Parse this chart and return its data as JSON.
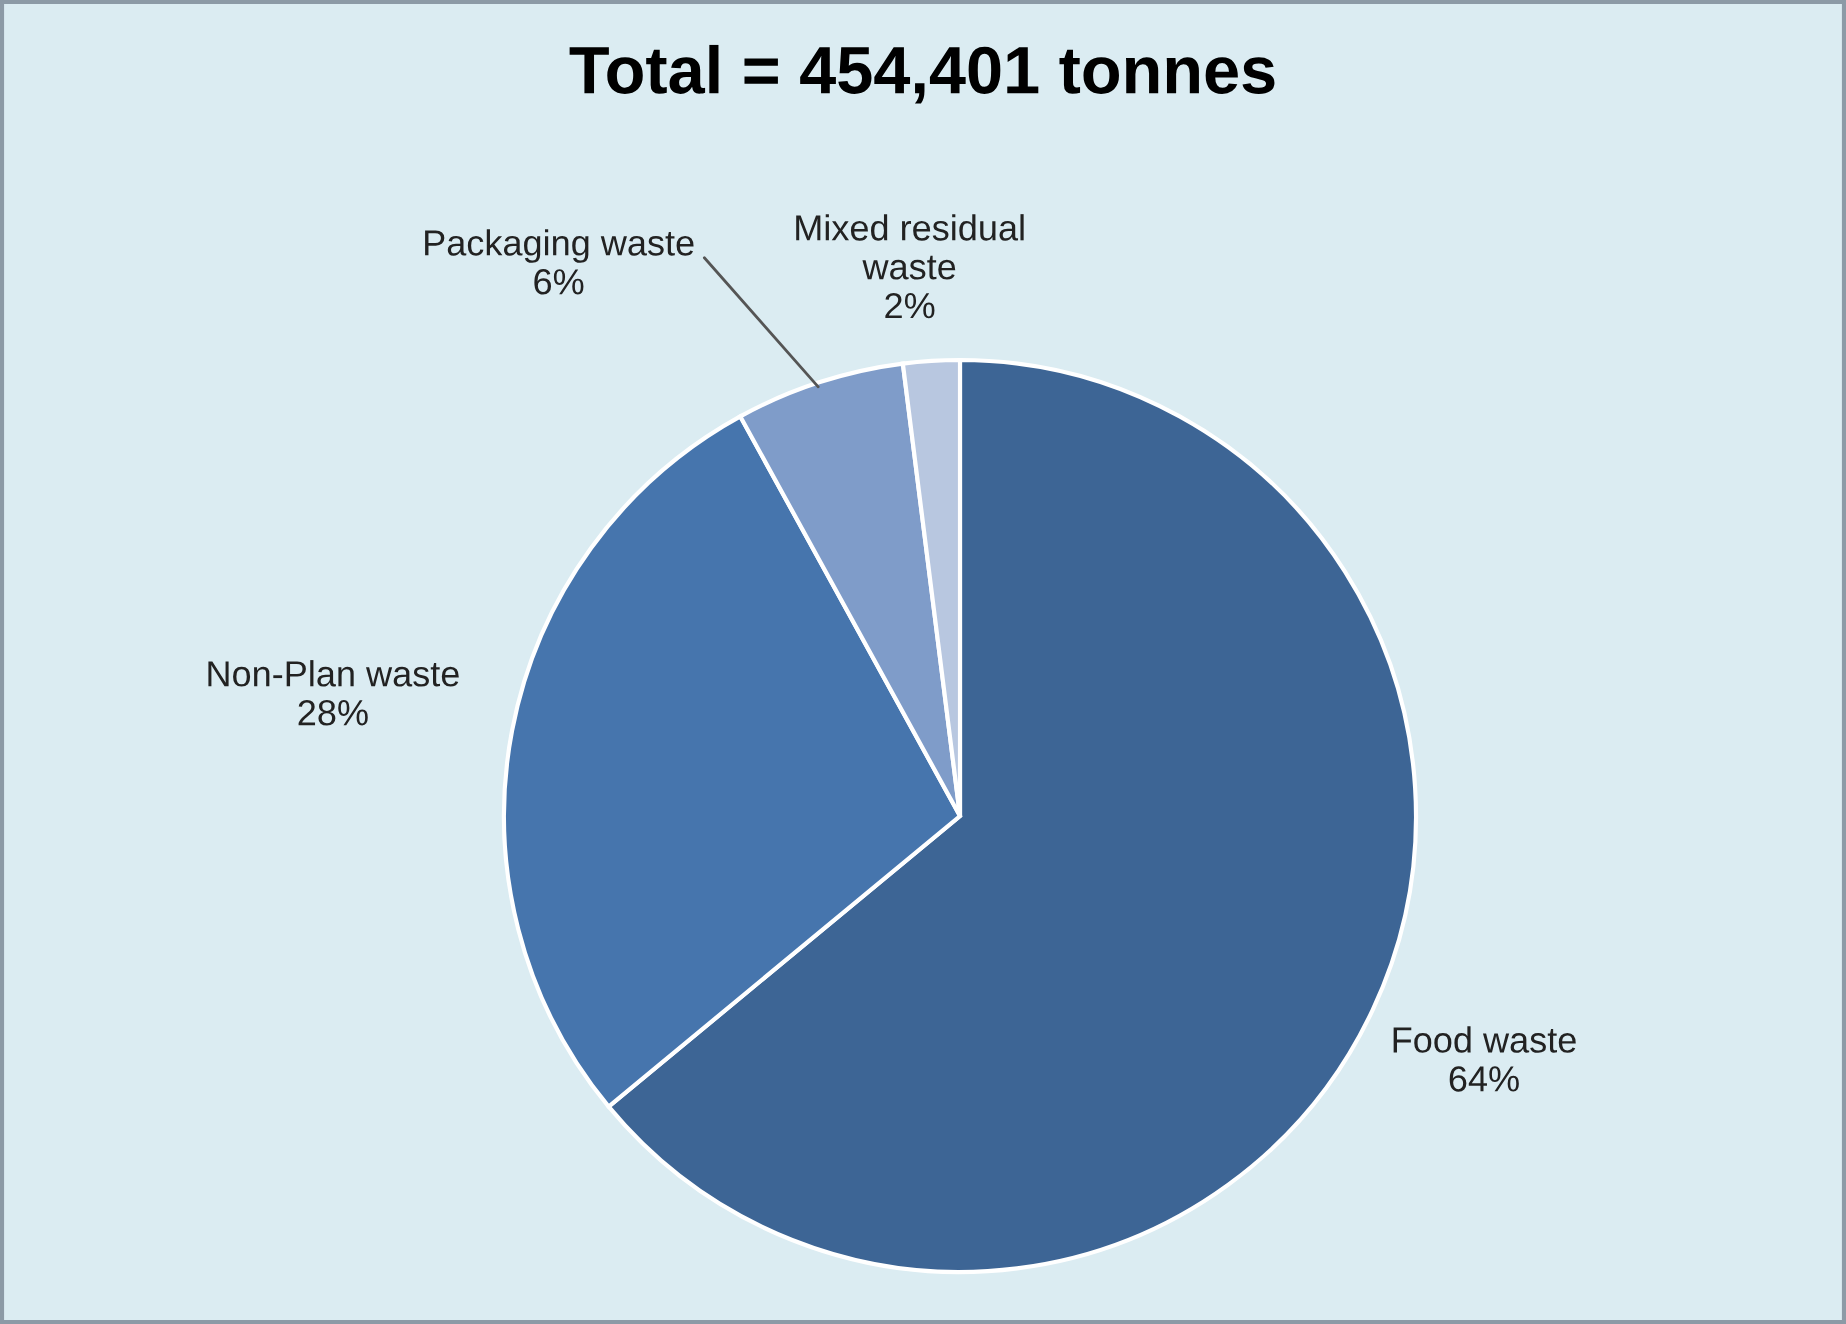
{
  "chart_data": {
    "type": "pie",
    "title": "Total = 454,401 tonnes",
    "categories": [
      "Food waste",
      "Non-Plan waste",
      "Packaging waste",
      "Mixed residual\nwaste"
    ],
    "values": [
      64,
      28,
      6,
      2
    ],
    "value_labels": [
      "64%",
      "28%",
      "6%",
      "2%"
    ],
    "colors": [
      "#3d6595",
      "#4675ad",
      "#7f9cc9",
      "#b8c7e0"
    ],
    "legend": false
  }
}
